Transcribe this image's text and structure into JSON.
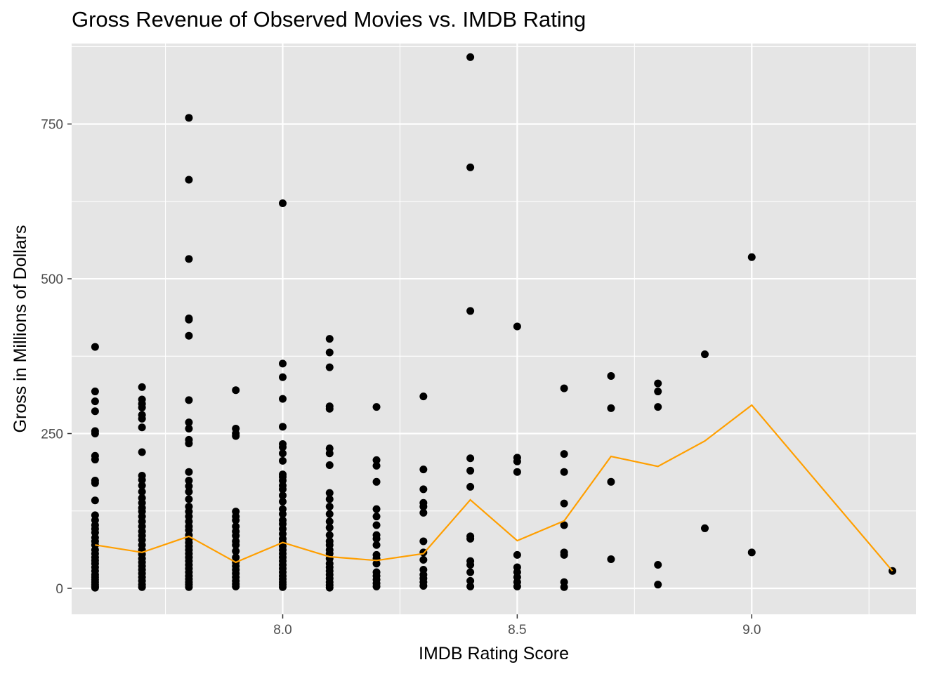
{
  "chart_data": {
    "type": "scatter",
    "title": "Gross Revenue of Observed Movies vs. IMDB Rating",
    "xlabel": "IMDB Rating Score",
    "ylabel": "Gross in Millions of Dollars",
    "xlim": [
      7.55,
      9.35
    ],
    "ylim": [
      -42,
      880
    ],
    "x_ticks": [
      8.0,
      8.5,
      9.0
    ],
    "x_tick_labels": [
      "8.0",
      "8.5",
      "9.0"
    ],
    "x_minor_ticks": [
      7.75,
      8.25,
      8.75,
      9.25
    ],
    "y_ticks": [
      0,
      250,
      500,
      750
    ],
    "y_tick_labels": [
      "0",
      "250",
      "500",
      "750"
    ],
    "y_minor_ticks": [
      125,
      375,
      625,
      875
    ],
    "grid": true,
    "colors": {
      "panel": "#e5e5e5",
      "grid": "#ffffff",
      "points": "#000000",
      "line": "#ff9f00"
    },
    "points": [
      {
        "x": 7.6,
        "y": [
          390,
          318,
          302,
          286,
          254,
          250,
          214,
          208,
          174,
          170,
          142,
          118,
          110,
          102,
          96,
          90,
          82,
          76,
          70,
          62,
          56,
          50,
          45,
          40,
          34,
          28,
          22,
          18,
          14,
          10,
          6,
          3,
          1
        ]
      },
      {
        "x": 7.7,
        "y": [
          325,
          305,
          298,
          292,
          280,
          274,
          260,
          220,
          182,
          175,
          166,
          156,
          146,
          138,
          130,
          124,
          116,
          108,
          100,
          92,
          85,
          78,
          70,
          62,
          55,
          48,
          42,
          36,
          30,
          24,
          18,
          12,
          6,
          2
        ]
      },
      {
        "x": 7.8,
        "y": [
          760,
          660,
          532,
          436,
          434,
          408,
          304,
          268,
          258,
          240,
          234,
          188,
          174,
          165,
          156,
          144,
          132,
          124,
          116,
          108,
          100,
          94,
          86,
          80,
          74,
          68,
          62,
          56,
          50,
          44,
          38,
          32,
          26,
          20,
          15,
          10,
          6,
          2
        ]
      },
      {
        "x": 7.9,
        "y": [
          320,
          258,
          250,
          246,
          124,
          116,
          110,
          100,
          92,
          85,
          76,
          70,
          60,
          50,
          42,
          36,
          30,
          24,
          18,
          12,
          7,
          3
        ]
      },
      {
        "x": 8.0,
        "y": [
          622,
          363,
          341,
          306,
          261,
          233,
          228,
          218,
          206,
          184,
          180,
          174,
          166,
          160,
          150,
          140,
          128,
          120,
          110,
          104,
          96,
          88,
          80,
          74,
          68,
          62,
          56,
          50,
          44,
          38,
          32,
          26,
          20,
          15,
          10,
          6,
          2
        ]
      },
      {
        "x": 8.1,
        "y": [
          403,
          381,
          357,
          294,
          290,
          226,
          218,
          199,
          154,
          144,
          132,
          120,
          108,
          98,
          86,
          76,
          70,
          62,
          56,
          48,
          40,
          34,
          28,
          22,
          16,
          10,
          5,
          1
        ]
      },
      {
        "x": 8.2,
        "y": [
          293,
          207,
          198,
          172,
          128,
          116,
          102,
          86,
          80,
          70,
          54,
          48,
          40,
          26,
          20,
          14,
          8,
          3
        ]
      },
      {
        "x": 8.3,
        "y": [
          310,
          192,
          160,
          138,
          132,
          122,
          76,
          58,
          46,
          30,
          22,
          16,
          10,
          4
        ]
      },
      {
        "x": 8.4,
        "y": [
          858,
          680,
          448,
          210,
          190,
          164,
          84,
          80,
          44,
          38,
          26,
          12,
          3
        ]
      },
      {
        "x": 8.5,
        "y": [
          423,
          211,
          205,
          188,
          54,
          34,
          26,
          18,
          10,
          3
        ]
      },
      {
        "x": 8.6,
        "y": [
          323,
          217,
          188,
          137,
          102,
          58,
          54,
          10,
          2
        ]
      },
      {
        "x": 8.7,
        "y": [
          343,
          291,
          172,
          47
        ]
      },
      {
        "x": 8.8,
        "y": [
          331,
          318,
          293,
          38,
          6
        ]
      },
      {
        "x": 8.9,
        "y": [
          378,
          97
        ]
      },
      {
        "x": 9.0,
        "y": [
          535,
          58
        ]
      },
      {
        "x": 9.3,
        "y": [
          28
        ]
      }
    ],
    "series": [
      {
        "x": [
          7.6,
          7.7,
          7.8,
          7.9,
          8.0,
          8.1,
          8.2,
          8.3,
          8.4,
          8.5,
          8.6,
          8.7,
          8.8,
          8.9,
          9.0,
          9.3
        ],
        "y": [
          70,
          58,
          84,
          42,
          74,
          51,
          45,
          56,
          143,
          77,
          109,
          213,
          197,
          238,
          296,
          28
        ]
      }
    ]
  }
}
